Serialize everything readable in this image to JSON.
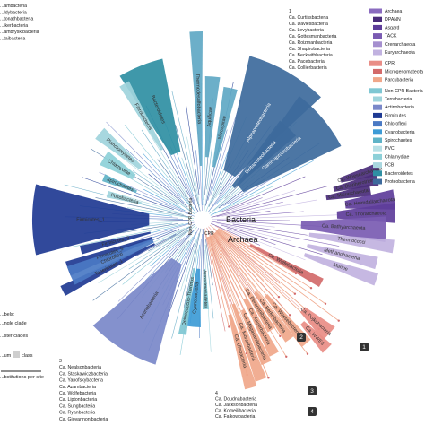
{
  "center_labels": {
    "bacteria": "Bacteria",
    "archaea": "Archaea",
    "noncpr": "Non-CPR Bacteria",
    "cpr": "CPR"
  },
  "legend": [
    {
      "key": "archaea_group",
      "label": "Archaea",
      "color": "#8a6bbf",
      "kind": "header"
    },
    {
      "key": "dpann",
      "label": "DPANN",
      "color": "#4a2c7a",
      "kind": "item"
    },
    {
      "key": "asgard",
      "label": "Asgard",
      "color": "#5e3d9a",
      "kind": "item"
    },
    {
      "key": "tack",
      "label": "TACK",
      "color": "#7a5bb2",
      "kind": "item"
    },
    {
      "key": "crenarch",
      "label": "Crenarchaeota",
      "color": "#a58fcf",
      "kind": "item"
    },
    {
      "key": "euryarch",
      "label": "Euryarchaeota",
      "color": "#c1b2e0",
      "kind": "item"
    },
    {
      "key": "cpr_group",
      "label": "CPR",
      "color": "#e98d86",
      "kind": "header"
    },
    {
      "key": "microgenomates",
      "label": "Microgenomateota",
      "color": "#d36a6a",
      "kind": "item"
    },
    {
      "key": "parcubacteria",
      "label": "Parcubacteria",
      "color": "#f0a78a",
      "kind": "item"
    },
    {
      "key": "noncpr_group",
      "label": "Non-CPR Bacteria",
      "color": "#7fc7d3",
      "kind": "header"
    },
    {
      "key": "terrabacteria",
      "label": "Terrabacteria",
      "color": "#9fd4dc",
      "kind": "item"
    },
    {
      "key": "actinobacteria",
      "label": "Actinobacteria",
      "color": "#7a88c9",
      "kind": "item"
    },
    {
      "key": "firmicutes",
      "label": "Firmicutes",
      "color": "#1f3a93",
      "kind": "item"
    },
    {
      "key": "chloroflexi",
      "label": "Chloroflexi",
      "color": "#4a79c4",
      "kind": "item"
    },
    {
      "key": "cyanobacteria",
      "label": "Cyanobacteria",
      "color": "#3d9bd6",
      "kind": "item"
    },
    {
      "key": "spirochaetes",
      "label": "Spirochaetes",
      "color": "#5fb3c7",
      "kind": "item"
    },
    {
      "key": "pvc",
      "label": "PVC",
      "color": "#b7e0e6",
      "kind": "item"
    },
    {
      "key": "chlamydiae",
      "label": "Chlamydiae",
      "color": "#8dd0d8",
      "kind": "item"
    },
    {
      "key": "fcb",
      "label": "FCB",
      "color": "#a9d7df",
      "kind": "item"
    },
    {
      "key": "bacteroidetes",
      "label": "Bacteroidetes",
      "color": "#2f8fa3",
      "kind": "item"
    },
    {
      "key": "proteobacteria",
      "label": "Proteobacteria",
      "color": "#3d6a9c",
      "kind": "item"
    }
  ],
  "top_list": {
    "header": "1",
    "items": [
      "Ca. Curtissbacteria",
      "Ca. Daviesbacteria",
      "Ca. Levybacteria",
      "Ca. Gottesmanbacteria",
      "Ca. Roizmanbacteria",
      "Ca. Shapirobacteria",
      "Ca. Beckwithbacteria",
      "Ca. Pacebacteria",
      "Ca. Collierbacteria"
    ]
  },
  "left_top_list": [
    "...ambacteria",
    "...Idybacteria",
    "...tonathbacteria",
    "...ikerbacteria",
    "...ambryskibacteria",
    "...taibacteria"
  ],
  "bottom_list_3": {
    "header": "3",
    "items": [
      "Ca. Nealsonbacteria",
      "Ca. Staskawiczbacteria",
      "Ca. Yanofskybacteria",
      "Ca. Azambacteria",
      "Ca. Wolfebacteria",
      "Ca. Liptonbacteria",
      "Ca. Sungbacteria",
      "Ca. Ryanbacteria",
      "Ca. Giovannonibacteria"
    ]
  },
  "bottom_list_4": {
    "header": "4",
    "items": [
      "Ca. Doudnabacteria",
      "Ca. Jacksonbacteria",
      "Ca. Komeilibacteria",
      "Ca. Falkowbacteria"
    ]
  },
  "left_notes": [
    "...bels:",
    "...ngle clade",
    "...ster clades",
    "...um",
    "class",
    "...bstitutions per site"
  ],
  "clades": [
    {
      "name": "Alphaproteobacteria",
      "color": "#3d6a9c"
    },
    {
      "name": "Gammaproteobacteria",
      "color": "#3d6a9c"
    },
    {
      "name": "Deltaproteobacteria",
      "color": "#3d6a9c"
    },
    {
      "name": "Nitrospirae",
      "color": "#5fa8c4"
    },
    {
      "name": "Aquificae",
      "color": "#5fa8c4"
    },
    {
      "name": "Thermodesulfobacteria",
      "color": "#5fa8c4"
    },
    {
      "name": "Bacteroidetes",
      "color": "#2f8fa3"
    },
    {
      "name": "Fibrobacteres",
      "color": "#9fd4dc"
    },
    {
      "name": "Planctomycetes",
      "color": "#9fd4dc"
    },
    {
      "name": "Chlamydiae",
      "color": "#8dd0d8"
    },
    {
      "name": "Spirochaetes",
      "color": "#5fb3c7"
    },
    {
      "name": "Fusobacteria",
      "color": "#9fd4dc"
    },
    {
      "name": "Firmicutes_1",
      "color": "#1f3a93"
    },
    {
      "name": "Firmicutes_3",
      "color": "#1f3a93"
    },
    {
      "name": "Firmicutes_5",
      "color": "#1f3a93"
    },
    {
      "name": "Tenericutes_1",
      "color": "#1f3a93"
    },
    {
      "name": "Chloroflexi",
      "color": "#4a79c4"
    },
    {
      "name": "Actinobacteria",
      "color": "#7a88c9"
    },
    {
      "name": "Cyanobacteria",
      "color": "#3d9bd6"
    },
    {
      "name": "Deinococcus-Thermus",
      "color": "#7fc7d3"
    },
    {
      "name": "Armatimonadetes",
      "color": "#7fc7d3"
    },
    {
      "name": "Ca. Woesearchaeota",
      "color": "#4a2c7a"
    },
    {
      "name": "Ca. Diapherotrites",
      "color": "#4a2c7a"
    },
    {
      "name": "Ca. Micrarchaeota",
      "color": "#4a2c7a"
    },
    {
      "name": "Ca. Heimdallarchaeota",
      "color": "#5e3d9a"
    },
    {
      "name": "Ca. Thorarchaeota",
      "color": "#5e3d9a"
    },
    {
      "name": "Ca. Bathyarchaeota",
      "color": "#7a5bb2"
    },
    {
      "name": "Thermococci",
      "color": "#c1b2e0"
    },
    {
      "name": "Methanobacteria",
      "color": "#c1b2e0"
    },
    {
      "name": "Marine",
      "color": "#c1b2e0"
    },
    {
      "name": "Ca. Wolfebacteria",
      "color": "#d36a6a"
    },
    {
      "name": "Ca. Dojkabacteria",
      "color": "#e98d86"
    },
    {
      "name": "Ca. WWE3",
      "color": "#e98d86"
    },
    {
      "name": "Ca. Peregrinibacteria",
      "color": "#f0a78a"
    },
    {
      "name": "Ca. Woesebacteria",
      "color": "#f0a78a"
    },
    {
      "name": "Ca. Berkelbacteria",
      "color": "#f0a78a"
    },
    {
      "name": "Ca. Kaiserbacteria",
      "color": "#f0a78a"
    },
    {
      "name": "Ca. Magasanikbacteria",
      "color": "#f0a78a"
    },
    {
      "name": "Ca. Moranbacteria",
      "color": "#f0a78a"
    },
    {
      "name": "Ca. Uhrbacteria",
      "color": "#f0a78a"
    }
  ],
  "badges": [
    "1",
    "2",
    "3",
    "4"
  ]
}
